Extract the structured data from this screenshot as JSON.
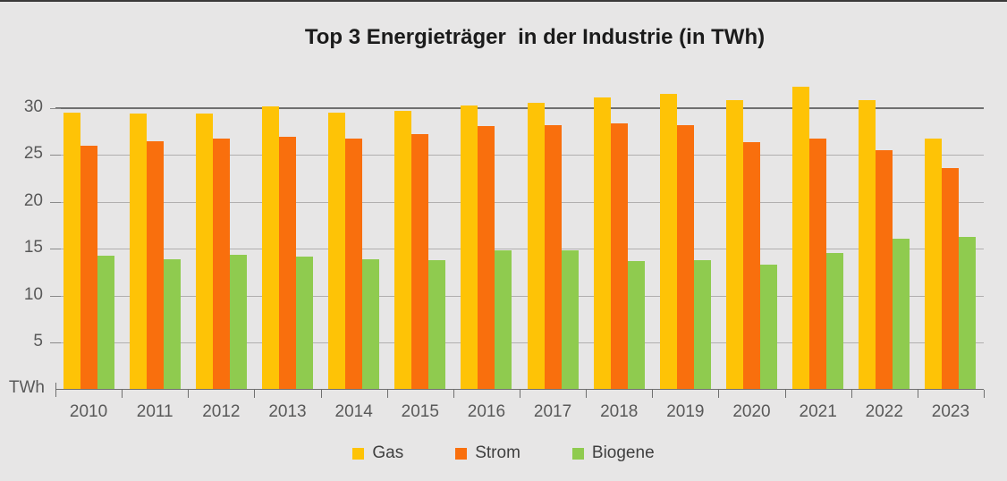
{
  "title": "Top 3 Energieträger  in der Industrie (in TWh)",
  "y_axis": {
    "unit_label": "TWh",
    "tick_labels": [
      "5",
      "10",
      "15",
      "20",
      "25",
      "30"
    ]
  },
  "x_axis": {
    "tick_labels": [
      "2010",
      "2011",
      "2012",
      "2013",
      "2014",
      "2015",
      "2016",
      "2017",
      "2018",
      "2019",
      "2020",
      "2021",
      "2022",
      "2023"
    ]
  },
  "legend": {
    "items": [
      {
        "label": "Gas",
        "color": "#FEC306"
      },
      {
        "label": "Strom",
        "color": "#F96F0D"
      },
      {
        "label": "Biogene",
        "color": "#8FCB4F"
      }
    ]
  },
  "chart_data": {
    "type": "bar",
    "title": "Top 3 Energieträger  in der Industrie (in TWh)",
    "categories": [
      2010,
      2011,
      2012,
      2013,
      2014,
      2015,
      2016,
      2017,
      2018,
      2019,
      2020,
      2021,
      2022,
      2023
    ],
    "series": [
      {
        "name": "Gas",
        "color": "#FEC306",
        "values": [
          29.5,
          29.4,
          29.4,
          30.2,
          29.5,
          29.7,
          30.3,
          30.6,
          31.1,
          31.5,
          30.9,
          32.3,
          30.9,
          26.8
        ]
      },
      {
        "name": "Strom",
        "color": "#F96F0D",
        "values": [
          26.0,
          26.5,
          26.8,
          26.9,
          26.8,
          27.2,
          28.1,
          28.2,
          28.4,
          28.2,
          26.4,
          26.8,
          25.5,
          23.6
        ]
      },
      {
        "name": "Biogene",
        "color": "#8FCB4F",
        "values": [
          14.3,
          13.9,
          14.4,
          14.2,
          13.9,
          13.8,
          14.8,
          14.8,
          13.7,
          13.8,
          13.3,
          14.5,
          16.1,
          16.3
        ]
      }
    ],
    "xlabel": "",
    "ylabel": "TWh",
    "ylim": [
      0,
      33
    ],
    "yticks": [
      5,
      10,
      15,
      20,
      25,
      30
    ],
    "grid": true,
    "major_gridline_at": 30,
    "legend_position": "bottom",
    "background_color": "#E7E6E6",
    "axis_color": "#6F6F6F",
    "gridline_color": "#B1AFAF",
    "tick_label_color": "#595959"
  }
}
